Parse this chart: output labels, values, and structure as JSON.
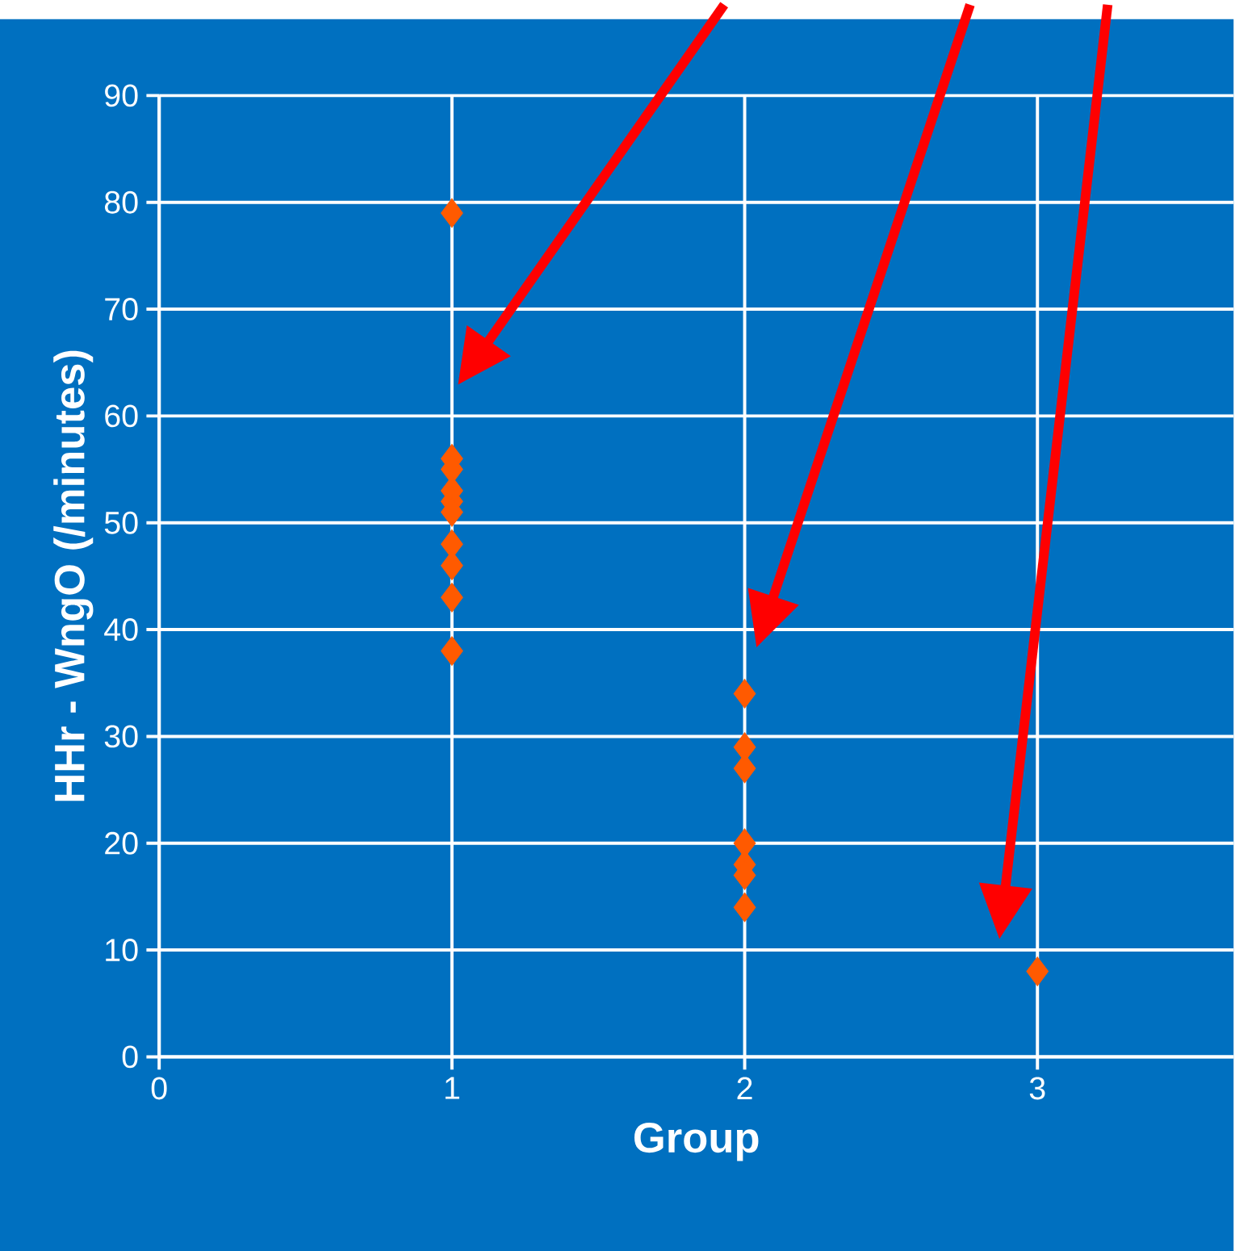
{
  "chart_data": {
    "type": "scatter",
    "xlabel": "Group",
    "ylabel": "HHr - WngO (/minutes)",
    "x": [
      1,
      1,
      1,
      1,
      1,
      1,
      1,
      1,
      1,
      1,
      2,
      2,
      2,
      2,
      2,
      2,
      2,
      3
    ],
    "values": [
      79,
      56,
      55,
      53,
      52,
      51,
      48,
      46,
      43,
      38,
      34,
      29,
      27,
      20,
      18,
      17,
      14,
      8
    ],
    "color": "#ff5a00",
    "marker": "diamond",
    "grid": true,
    "xlim": [
      0,
      3.67
    ],
    "xticks": [
      0,
      1,
      2,
      3
    ],
    "ylim": [
      0,
      90
    ],
    "yticks": [
      0,
      10,
      20,
      30,
      40,
      50,
      60,
      70,
      80,
      90
    ]
  }
}
